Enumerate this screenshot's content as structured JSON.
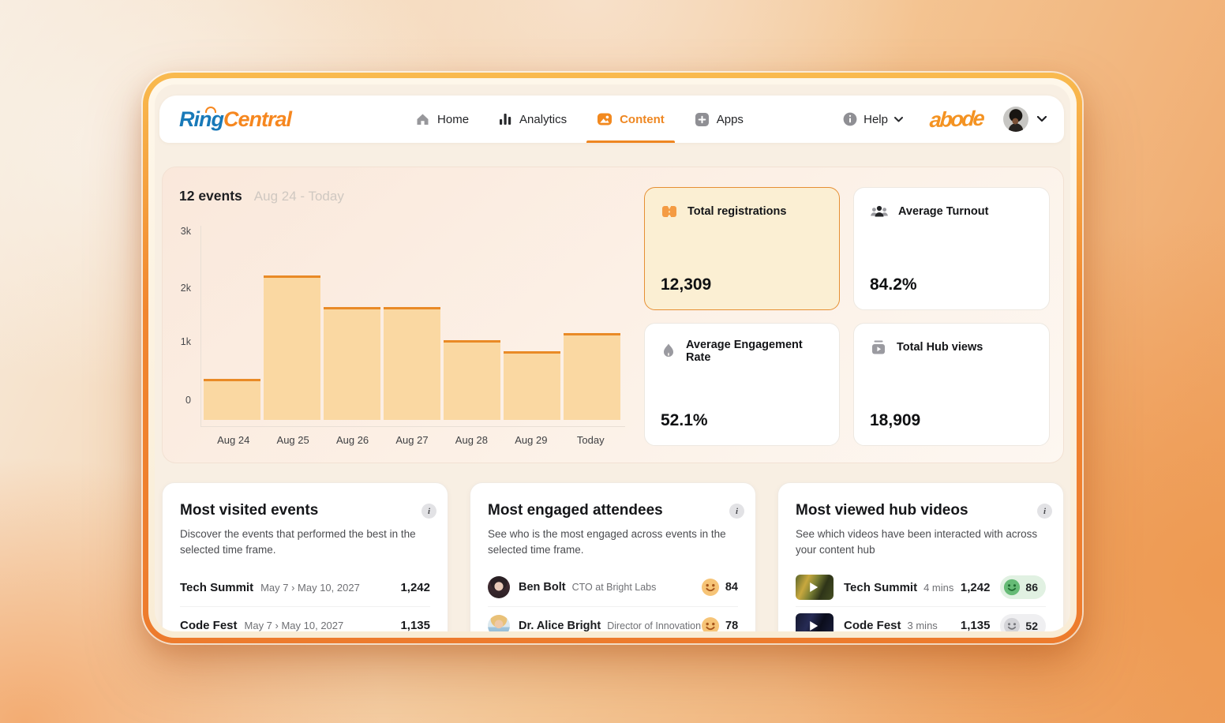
{
  "nav": {
    "brand": {
      "part1": "Ring",
      "part2": "Central"
    },
    "items": [
      {
        "label": "Home",
        "active": false
      },
      {
        "label": "Analytics",
        "active": false
      },
      {
        "label": "Content",
        "active": true
      },
      {
        "label": "Apps",
        "active": false
      }
    ],
    "help_label": "Help",
    "partner_logo": "abode"
  },
  "overview": {
    "events_count": "12 events",
    "date_range": "Aug 24 - Today"
  },
  "chart_data": {
    "type": "bar",
    "title": "12 events",
    "categories": [
      "Aug 24",
      "Aug 25",
      "Aug 26",
      "Aug 27",
      "Aug 28",
      "Aug 29",
      "Today"
    ],
    "values": [
      390,
      2230,
      1670,
      1670,
      1070,
      880,
      1200
    ],
    "y_ticks": [
      "3k",
      "2k",
      "1k",
      "0"
    ],
    "ylim": [
      0,
      3000
    ],
    "xlabel": "",
    "ylabel": "",
    "legend": false,
    "bar_color": "#FAD8A2",
    "bar_top_color": "#E98A26"
  },
  "stats": [
    {
      "label": "Total registrations",
      "value": "12,309",
      "icon": "ticket-icon",
      "highlighted": true
    },
    {
      "label": "Average Turnout",
      "value": "84.2%",
      "icon": "people-icon",
      "highlighted": false
    },
    {
      "label": "Average Engagement Rate",
      "value": "52.1%",
      "icon": "flame-icon",
      "highlighted": false
    },
    {
      "label": "Total Hub views",
      "value": "18,909",
      "icon": "video-icon",
      "highlighted": false
    }
  ],
  "cards": {
    "visited": {
      "title": "Most visited events",
      "description": "Discover the events that performed the best in the selected time frame.",
      "rows": [
        {
          "name": "Tech Summit",
          "date": "May 7 › May 10, 2027",
          "value": "1,242"
        },
        {
          "name": "Code Fest",
          "date": "May 7 › May 10, 2027",
          "value": "1,135"
        }
      ]
    },
    "engaged": {
      "title": "Most engaged attendees",
      "description": "See who is the most engaged across events in the selected time frame.",
      "rows": [
        {
          "name": "Ben Bolt",
          "role": "CTO at Bright Labs",
          "score": "84"
        },
        {
          "name": "Dr. Alice Bright",
          "role": "Director of Innovation",
          "score": "78"
        }
      ]
    },
    "videos": {
      "title": "Most viewed hub videos",
      "description": "See which videos have been interacted with across your content hub",
      "rows": [
        {
          "name": "Tech Summit",
          "duration": "4 mins",
          "views": "1,242",
          "score": "86",
          "sentiment": "positive"
        },
        {
          "name": "Code Fest",
          "duration": "3 mins",
          "views": "1,135",
          "score": "52",
          "sentiment": "neutral"
        }
      ]
    }
  },
  "colors": {
    "accent_orange": "#EE8722",
    "brand_blue": "#1879B8",
    "brand_orange": "#F6871F",
    "highlight_card_bg": "#FBEFD3",
    "highlight_card_border": "#E68F33",
    "positive_pill": "#E1F1E2",
    "neutral_pill": "#EFEFF1"
  }
}
